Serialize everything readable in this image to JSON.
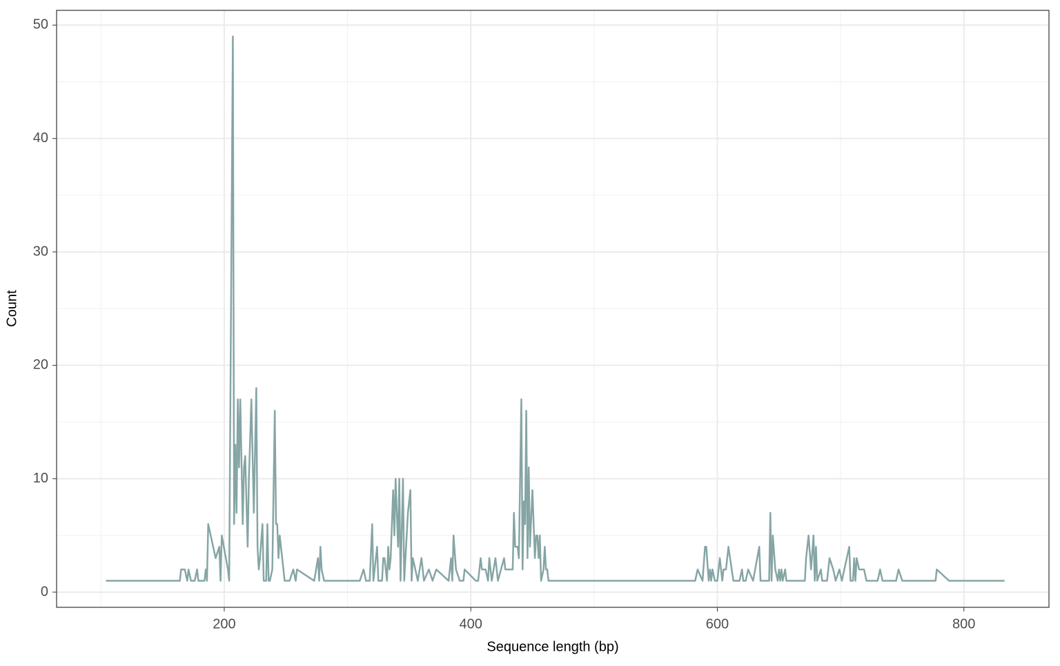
{
  "chart_data": {
    "type": "line",
    "xlabel": "Sequence length (bp)",
    "ylabel": "Count",
    "color": "#86a5a5",
    "x": [
      104,
      164,
      165,
      168,
      170,
      171,
      173,
      176,
      178,
      179,
      184,
      185,
      186,
      187,
      193,
      196,
      197,
      198,
      203,
      204,
      207,
      208,
      209,
      210,
      211,
      212,
      213,
      215,
      216,
      217,
      219,
      220,
      222,
      224,
      226,
      227,
      228,
      229,
      231,
      232,
      234,
      235,
      236,
      237,
      239,
      241,
      242,
      243,
      244,
      245,
      249,
      253,
      256,
      258,
      259,
      273,
      276,
      277,
      278,
      279,
      281,
      310,
      313,
      315,
      318,
      320,
      321,
      324,
      325,
      328,
      329,
      330,
      332,
      333,
      334,
      335,
      337,
      338,
      339,
      341,
      342,
      343,
      345,
      346,
      349,
      351,
      352,
      353,
      357,
      360,
      362,
      366,
      369,
      372,
      382,
      384,
      385,
      386,
      388,
      391,
      394,
      395,
      404,
      406,
      408,
      409,
      412,
      414,
      415,
      417,
      420,
      422,
      427,
      428,
      434,
      435,
      436,
      438,
      439,
      441,
      442,
      443,
      444,
      445,
      446,
      447,
      448,
      450,
      452,
      453,
      454,
      455,
      456,
      457,
      459,
      460,
      461,
      462,
      463,
      582,
      584,
      588,
      590,
      591,
      593,
      594,
      595,
      596,
      598,
      600,
      602,
      604,
      605,
      607,
      609,
      613,
      618,
      620,
      621,
      623,
      625,
      629,
      634,
      635,
      642,
      643,
      644,
      645,
      647,
      649,
      650,
      651,
      652,
      653,
      655,
      656,
      671,
      672,
      674,
      676,
      678,
      679,
      680,
      681,
      684,
      685,
      689,
      691,
      694,
      696,
      699,
      701,
      705,
      707,
      708,
      710,
      711,
      712,
      713,
      715,
      719,
      721,
      730,
      732,
      734,
      745,
      747,
      750,
      777,
      778,
      788,
      833
    ],
    "values": [
      1,
      1,
      2,
      2,
      1,
      2,
      1,
      1,
      2,
      1,
      1,
      2,
      1,
      6,
      3,
      4,
      1,
      5,
      2,
      1,
      49,
      6,
      13,
      7,
      17,
      11,
      17,
      6,
      11,
      12,
      4,
      10,
      17,
      7,
      18,
      4,
      2,
      3,
      6,
      1,
      1,
      6,
      1,
      1,
      2,
      16,
      6,
      6,
      3,
      5,
      1,
      1,
      2,
      1,
      2,
      1,
      3,
      1,
      4,
      2,
      1,
      1,
      2,
      1,
      1,
      6,
      1,
      4,
      1,
      1,
      3,
      3,
      1,
      4,
      2,
      3,
      9,
      5,
      10,
      4,
      10,
      1,
      10,
      1,
      7,
      9,
      1,
      3,
      1,
      3,
      1,
      2,
      1,
      2,
      1,
      3,
      1,
      5,
      2,
      1,
      1,
      2,
      1,
      1,
      3,
      2,
      2,
      1,
      3,
      1,
      3,
      1,
      3,
      2,
      2,
      7,
      4,
      4,
      3,
      17,
      2,
      8,
      6,
      16,
      3,
      11,
      4,
      9,
      3,
      5,
      5,
      3,
      5,
      1,
      2,
      4,
      2,
      2,
      1,
      1,
      2,
      1,
      4,
      4,
      1,
      2,
      1,
      2,
      1,
      1,
      3,
      1,
      2,
      2,
      4,
      1,
      1,
      2,
      1,
      1,
      2,
      1,
      4,
      1,
      1,
      7,
      1,
      5,
      2,
      1,
      2,
      1,
      2,
      1,
      2,
      1,
      1,
      3,
      5,
      2,
      5,
      1,
      4,
      1,
      2,
      1,
      1,
      3,
      2,
      1,
      2,
      1,
      3,
      4,
      1,
      1,
      3,
      1,
      3,
      2,
      2,
      1,
      1,
      2,
      1,
      1,
      2,
      1,
      1,
      2,
      1,
      1
    ],
    "xlim": [
      64,
      869
    ],
    "ylim": [
      -1.34,
      51.3
    ],
    "xticks": [
      200,
      400,
      600,
      800
    ],
    "yticks": [
      0,
      10,
      20,
      30,
      40,
      50
    ],
    "grid": true
  }
}
